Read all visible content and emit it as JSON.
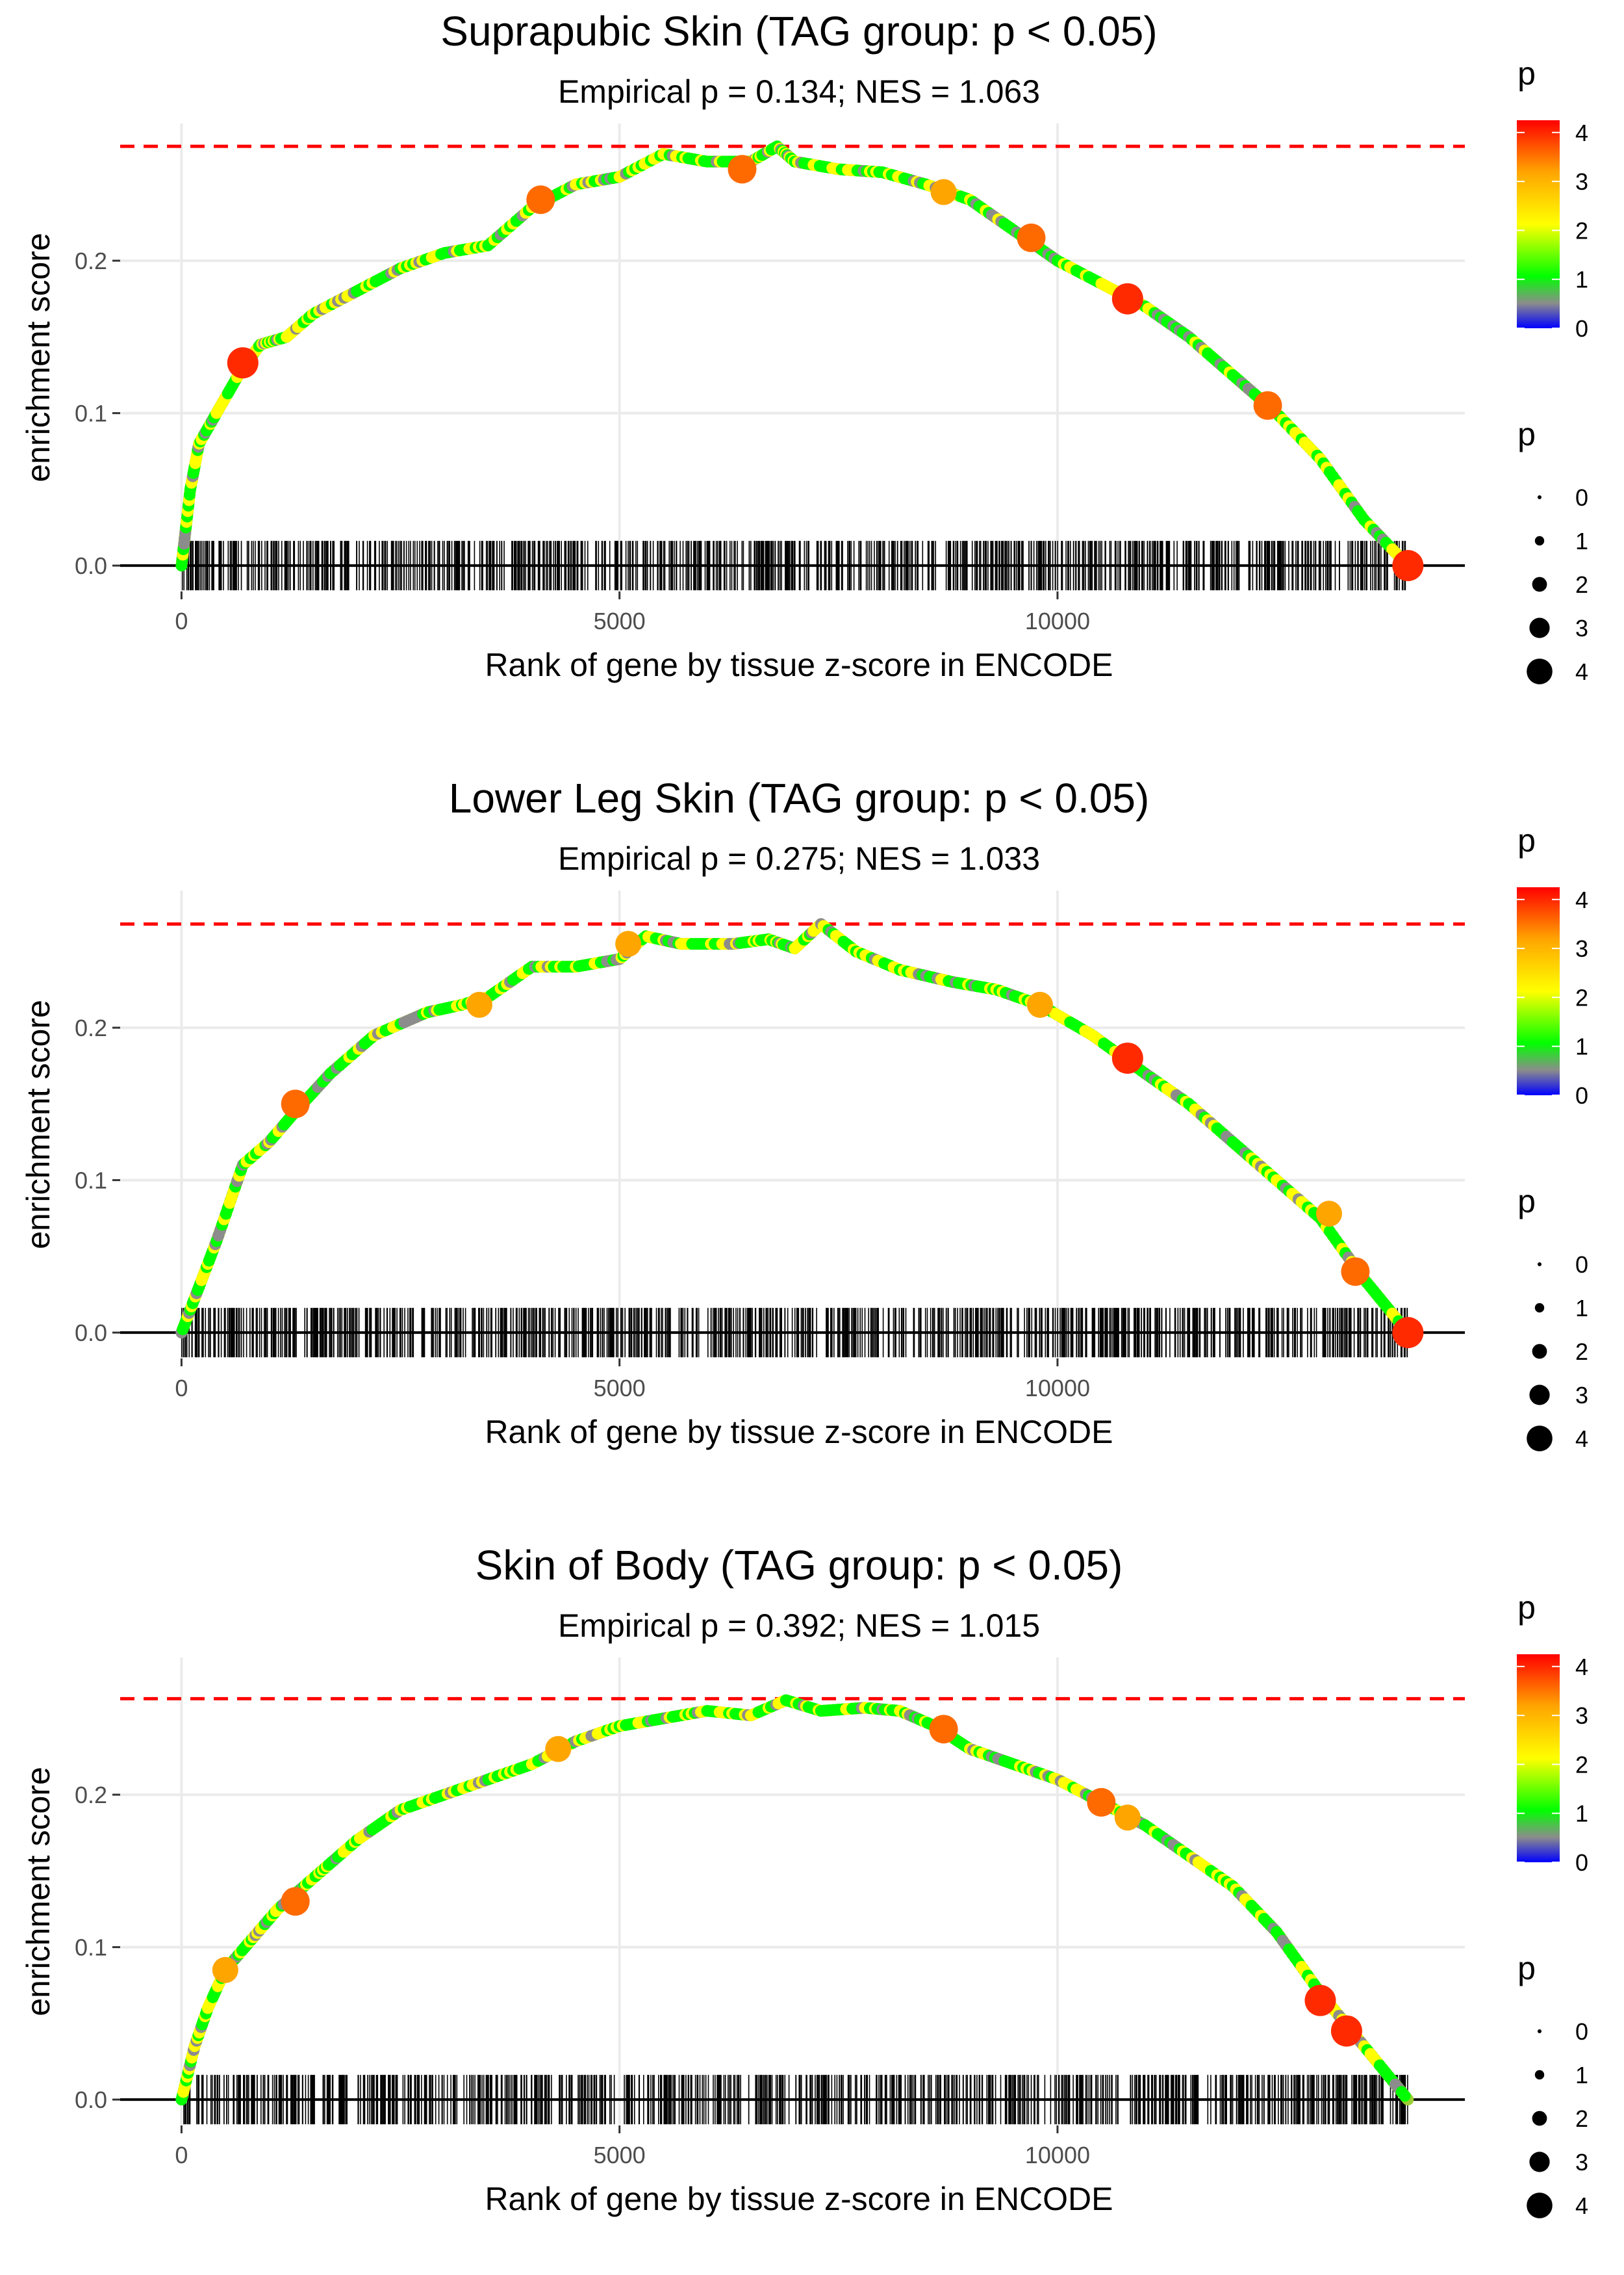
{
  "chart_data": [
    {
      "type": "line",
      "title": "Suprapubic Skin (TAG group: p < 0.05)",
      "subtitle": "Empirical p = 0.134; NES = 1.063",
      "xlabel": "Rank of gene by tissue z-score in ENCODE",
      "ylabel": "enrichment score",
      "xlim": [
        -700,
        14650
      ],
      "ylim": [
        -0.017,
        0.29
      ],
      "xticks": [
        0,
        5000,
        10000
      ],
      "xtick_labels": [
        "0",
        "5000",
        "10000"
      ],
      "yticks": [
        0.0,
        0.1,
        0.2
      ],
      "ytick_labels": [
        "0.0",
        "0.1",
        "0.2"
      ],
      "max_es": 0.275,
      "n_genes": 14000,
      "curve": [
        [
          0,
          0
        ],
        [
          100,
          0.05
        ],
        [
          200,
          0.08
        ],
        [
          400,
          0.1
        ],
        [
          700,
          0.13
        ],
        [
          900,
          0.145
        ],
        [
          1200,
          0.15
        ],
        [
          1500,
          0.165
        ],
        [
          2000,
          0.18
        ],
        [
          2500,
          0.195
        ],
        [
          3000,
          0.205
        ],
        [
          3500,
          0.21
        ],
        [
          4000,
          0.235
        ],
        [
          4500,
          0.25
        ],
        [
          5000,
          0.255
        ],
        [
          5500,
          0.27
        ],
        [
          6000,
          0.265
        ],
        [
          6500,
          0.265
        ],
        [
          6800,
          0.275
        ],
        [
          7000,
          0.265
        ],
        [
          7500,
          0.26
        ],
        [
          8000,
          0.258
        ],
        [
          8500,
          0.25
        ],
        [
          9000,
          0.24
        ],
        [
          9500,
          0.22
        ],
        [
          10000,
          0.2
        ],
        [
          10500,
          0.185
        ],
        [
          11000,
          0.17
        ],
        [
          11500,
          0.15
        ],
        [
          12000,
          0.125
        ],
        [
          12500,
          0.1
        ],
        [
          13000,
          0.07
        ],
        [
          13500,
          0.03
        ],
        [
          14000,
          0
        ]
      ],
      "highlights": [
        {
          "x": 700,
          "y": 0.133,
          "p": 4
        },
        {
          "x": 4100,
          "y": 0.24,
          "p": 3.5
        },
        {
          "x": 6400,
          "y": 0.26,
          "p": 3.5
        },
        {
          "x": 8700,
          "y": 0.245,
          "p": 3
        },
        {
          "x": 9700,
          "y": 0.215,
          "p": 3.5
        },
        {
          "x": 10800,
          "y": 0.175,
          "p": 4
        },
        {
          "x": 12400,
          "y": 0.105,
          "p": 3.5
        },
        {
          "x": 14000,
          "y": 0.0,
          "p": 4
        }
      ]
    },
    {
      "type": "line",
      "title": "Lower Leg Skin (TAG group: p < 0.05)",
      "subtitle": "Empirical p = 0.275; NES = 1.033",
      "xlabel": "Rank of gene by tissue z-score in ENCODE",
      "ylabel": "enrichment score",
      "xlim": [
        -700,
        14650
      ],
      "ylim": [
        -0.017,
        0.29
      ],
      "xticks": [
        0,
        5000,
        10000
      ],
      "xtick_labels": [
        "0",
        "5000",
        "10000"
      ],
      "yticks": [
        0.0,
        0.1,
        0.2
      ],
      "ytick_labels": [
        "0.0",
        "0.1",
        "0.2"
      ],
      "max_es": 0.268,
      "n_genes": 14000,
      "curve": [
        [
          0,
          0
        ],
        [
          200,
          0.03
        ],
        [
          400,
          0.06
        ],
        [
          700,
          0.11
        ],
        [
          1000,
          0.125
        ],
        [
          1300,
          0.145
        ],
        [
          1700,
          0.17
        ],
        [
          2200,
          0.195
        ],
        [
          2800,
          0.21
        ],
        [
          3200,
          0.215
        ],
        [
          3500,
          0.22
        ],
        [
          4000,
          0.24
        ],
        [
          4500,
          0.24
        ],
        [
          5000,
          0.245
        ],
        [
          5300,
          0.26
        ],
        [
          5700,
          0.255
        ],
        [
          6300,
          0.255
        ],
        [
          6700,
          0.258
        ],
        [
          7000,
          0.252
        ],
        [
          7300,
          0.268
        ],
        [
          7700,
          0.25
        ],
        [
          8200,
          0.238
        ],
        [
          8800,
          0.23
        ],
        [
          9300,
          0.225
        ],
        [
          9800,
          0.215
        ],
        [
          10400,
          0.195
        ],
        [
          11000,
          0.17
        ],
        [
          11500,
          0.15
        ],
        [
          12000,
          0.125
        ],
        [
          12500,
          0.1
        ],
        [
          13000,
          0.075
        ],
        [
          13500,
          0.035
        ],
        [
          14000,
          0
        ]
      ],
      "highlights": [
        {
          "x": 1300,
          "y": 0.15,
          "p": 3.5
        },
        {
          "x": 3400,
          "y": 0.215,
          "p": 3
        },
        {
          "x": 5100,
          "y": 0.255,
          "p": 3
        },
        {
          "x": 9800,
          "y": 0.215,
          "p": 3
        },
        {
          "x": 10800,
          "y": 0.18,
          "p": 4
        },
        {
          "x": 13100,
          "y": 0.078,
          "p": 3
        },
        {
          "x": 13400,
          "y": 0.04,
          "p": 3.5
        },
        {
          "x": 14000,
          "y": 0.0,
          "p": 4
        }
      ]
    },
    {
      "type": "line",
      "title": "Skin of Body (TAG group: p < 0.05)",
      "subtitle": "Empirical p = 0.392; NES = 1.015",
      "xlabel": "Rank of gene by tissue z-score in ENCODE",
      "ylabel": "enrichment score",
      "xlim": [
        -700,
        14650
      ],
      "ylim": [
        -0.017,
        0.29
      ],
      "xticks": [
        0,
        5000,
        10000
      ],
      "xtick_labels": [
        "0",
        "5000",
        "10000"
      ],
      "yticks": [
        0.0,
        0.1,
        0.2
      ],
      "ytick_labels": [
        "0.0",
        "0.1",
        "0.2"
      ],
      "max_es": 0.263,
      "n_genes": 14000,
      "curve": [
        [
          0,
          0
        ],
        [
          150,
          0.035
        ],
        [
          300,
          0.06
        ],
        [
          500,
          0.085
        ],
        [
          800,
          0.105
        ],
        [
          1100,
          0.125
        ],
        [
          1400,
          0.14
        ],
        [
          1700,
          0.155
        ],
        [
          2000,
          0.17
        ],
        [
          2500,
          0.19
        ],
        [
          3000,
          0.2
        ],
        [
          3500,
          0.21
        ],
        [
          4000,
          0.22
        ],
        [
          4500,
          0.235
        ],
        [
          5000,
          0.245
        ],
        [
          5500,
          0.25
        ],
        [
          6000,
          0.255
        ],
        [
          6500,
          0.252
        ],
        [
          6900,
          0.262
        ],
        [
          7300,
          0.255
        ],
        [
          7800,
          0.257
        ],
        [
          8200,
          0.255
        ],
        [
          8600,
          0.245
        ],
        [
          9000,
          0.23
        ],
        [
          9500,
          0.22
        ],
        [
          10000,
          0.21
        ],
        [
          10500,
          0.195
        ],
        [
          11000,
          0.18
        ],
        [
          11500,
          0.16
        ],
        [
          12000,
          0.14
        ],
        [
          12500,
          0.11
        ],
        [
          13000,
          0.07
        ],
        [
          13500,
          0.035
        ],
        [
          14000,
          0
        ]
      ],
      "highlights": [
        {
          "x": 500,
          "y": 0.085,
          "p": 3
        },
        {
          "x": 1300,
          "y": 0.13,
          "p": 3.5
        },
        {
          "x": 4300,
          "y": 0.23,
          "p": 3
        },
        {
          "x": 8700,
          "y": 0.243,
          "p": 3.5
        },
        {
          "x": 10500,
          "y": 0.195,
          "p": 3.5
        },
        {
          "x": 10800,
          "y": 0.185,
          "p": 3
        },
        {
          "x": 13000,
          "y": 0.065,
          "p": 4
        },
        {
          "x": 13300,
          "y": 0.045,
          "p": 4
        }
      ]
    }
  ],
  "legend": {
    "color_title": "p",
    "color_ticks": [
      4,
      3,
      2,
      1,
      0
    ],
    "color_tick_labels": [
      "4",
      "3",
      "2",
      "1",
      "0"
    ],
    "color_stops": [
      "#0000ff",
      "#8c8c8c",
      "#00ff00",
      "#ffff00",
      "#ffa500",
      "#ff0000"
    ],
    "size_title": "p",
    "size_items": [
      "0",
      "1",
      "2",
      "3",
      "4"
    ],
    "size_values": [
      0,
      1,
      2,
      3,
      4
    ]
  },
  "colors": {
    "threshold_line": "#ff0000",
    "grid": "#ebebeb",
    "ticks_rug": "#000000"
  }
}
